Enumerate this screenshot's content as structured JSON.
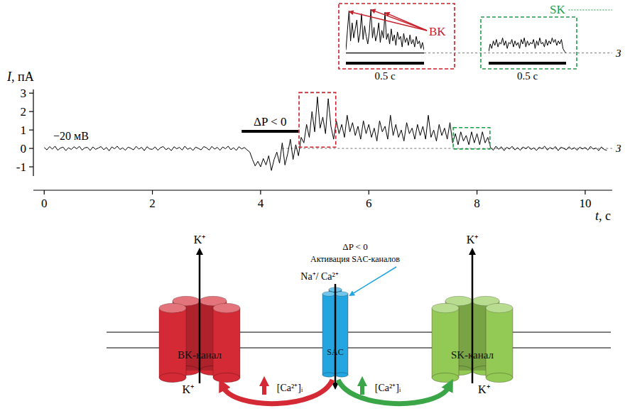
{
  "chart_data": [
    {
      "type": "line",
      "xlabel": "t, с",
      "ylabel": "I, пА",
      "xlim": [
        -0.2,
        10.5
      ],
      "ylim": [
        -1.5,
        3.2
      ],
      "xticks": [
        0,
        2,
        4,
        6,
        8,
        10
      ],
      "yticks": [
        -1,
        0,
        1,
        2,
        3
      ],
      "grid": false,
      "holding_potential": "−20 мВ",
      "pressure_pulse": {
        "start": 3.65,
        "end": 4.7,
        "label": "ΔP < 0"
      },
      "closed_level": {
        "value": 0,
        "label": "З",
        "from": 4.4
      },
      "zoom_regions": [
        {
          "start": 4.75,
          "end": 5.35,
          "color": "#c8202a"
        },
        {
          "start": 7.6,
          "end": 8.2,
          "color": "#1f9e4a"
        }
      ],
      "x": [
        0,
        0.05,
        0.1,
        0.15,
        0.2,
        0.25,
        0.3,
        0.35,
        0.4,
        0.45,
        0.5,
        0.55,
        0.6,
        0.65,
        0.7,
        0.75,
        0.8,
        0.85,
        0.9,
        0.95,
        1,
        1.05,
        1.1,
        1.15,
        1.2,
        1.25,
        1.3,
        1.35,
        1.4,
        1.45,
        1.5,
        1.55,
        1.6,
        1.65,
        1.7,
        1.75,
        1.8,
        1.85,
        1.9,
        1.95,
        2,
        2.05,
        2.1,
        2.15,
        2.2,
        2.25,
        2.3,
        2.35,
        2.4,
        2.45,
        2.5,
        2.55,
        2.6,
        2.65,
        2.7,
        2.75,
        2.8,
        2.85,
        2.9,
        2.95,
        3,
        3.05,
        3.1,
        3.15,
        3.2,
        3.25,
        3.3,
        3.35,
        3.4,
        3.45,
        3.5,
        3.55,
        3.6,
        3.65,
        3.7,
        3.75,
        3.8,
        3.85,
        3.9,
        3.95,
        4,
        4.05,
        4.1,
        4.15,
        4.2,
        4.25,
        4.3,
        4.35,
        4.4,
        4.45,
        4.5,
        4.55,
        4.6,
        4.65,
        4.7,
        4.75,
        4.8,
        4.85,
        4.9,
        4.95,
        5,
        5.05,
        5.1,
        5.15,
        5.2,
        5.25,
        5.3,
        5.35,
        5.4,
        5.45,
        5.5,
        5.55,
        5.6,
        5.65,
        5.7,
        5.75,
        5.8,
        5.85,
        5.9,
        5.95,
        6,
        6.05,
        6.1,
        6.15,
        6.2,
        6.25,
        6.3,
        6.35,
        6.4,
        6.45,
        6.5,
        6.55,
        6.6,
        6.65,
        6.7,
        6.75,
        6.8,
        6.85,
        6.9,
        6.95,
        7,
        7.05,
        7.1,
        7.15,
        7.2,
        7.25,
        7.3,
        7.35,
        7.4,
        7.45,
        7.5,
        7.55,
        7.6,
        7.65,
        7.7,
        7.75,
        7.8,
        7.85,
        7.9,
        7.95,
        8,
        8.05,
        8.1,
        8.15,
        8.2,
        8.25,
        8.3,
        8.35,
        8.4,
        8.45,
        8.5,
        8.55,
        8.6,
        8.65,
        8.7,
        8.75,
        8.8,
        8.85,
        8.9,
        8.95,
        9,
        9.05,
        9.1,
        9.15,
        9.2,
        9.25,
        9.3,
        9.35,
        9.4,
        9.45,
        9.5,
        9.55,
        9.6,
        9.65,
        9.7,
        9.75,
        9.8,
        9.85,
        9.9,
        9.95,
        10,
        10.05,
        10.1,
        10.15,
        10.2,
        10.25,
        10.3,
        10.35,
        10.4
      ],
      "series": [
        {
          "color": "#000000",
          "values": [
            0.05,
            -0.08,
            0.1,
            -0.04,
            0.12,
            -0.1,
            0.02,
            0.07,
            -0.12,
            0.04,
            -0.06,
            0.09,
            -0.02,
            0.11,
            -0.09,
            0.03,
            0.06,
            -0.11,
            0.08,
            -0.05,
            0.02,
            0.1,
            -0.07,
            0.05,
            -0.13,
            0.08,
            -0.02,
            0.12,
            -0.06,
            0.03,
            -0.1,
            0.07,
            0.01,
            -0.08,
            0.11,
            -0.04,
            0.06,
            -0.12,
            0.09,
            -0.03,
            -0.05,
            0.08,
            -0.1,
            0.04,
            0.1,
            -0.07,
            0.02,
            -0.12,
            0.09,
            -0.02,
            0.06,
            -0.09,
            0.12,
            -0.05,
            0.03,
            -0.11,
            0.07,
            0.0,
            -0.08,
            0.1,
            0.03,
            -0.09,
            0.11,
            -0.04,
            0.06,
            -0.1,
            0.08,
            -0.02,
            0.12,
            -0.07,
            0.04,
            -0.11,
            0.09,
            -0.03,
            0.05,
            -0.08,
            -0.2,
            -0.6,
            -0.95,
            -0.7,
            -1.0,
            -0.55,
            -0.9,
            -0.4,
            -1.2,
            -0.6,
            -0.2,
            -0.8,
            0.3,
            -0.9,
            -0.3,
            0.5,
            -0.6,
            0.2,
            -0.4,
            0.6,
            0.3,
            1.3,
            0.6,
            2.0,
            0.9,
            2.8,
            1.1,
            1.7,
            0.8,
            2.7,
            1.2,
            0.5,
            1.5,
            0.8,
            1.3,
            0.6,
            1.8,
            0.9,
            1.4,
            0.7,
            1.2,
            0.5,
            1.5,
            0.8,
            1.3,
            0.6,
            1.1,
            0.4,
            1.5,
            0.9,
            1.2,
            0.5,
            1.8,
            0.7,
            1.3,
            0.6,
            1.0,
            0.4,
            1.4,
            0.8,
            1.1,
            0.5,
            1.3,
            0.7,
            1.2,
            0.5,
            1.8,
            0.6,
            1.0,
            0.4,
            1.3,
            0.7,
            1.1,
            0.5,
            1.4,
            0.3,
            0.8,
            0.2,
            0.9,
            0.4,
            0.7,
            0.2,
            0.9,
            0.3,
            0.8,
            0.2,
            0.9,
            0.3,
            0.6,
            0.05,
            -0.1,
            0.12,
            -0.05,
            0.09,
            -0.12,
            0.06,
            -0.03,
            0.11,
            -0.08,
            0.04,
            -0.1,
            0.08,
            -0.02,
            0.1,
            -0.06,
            0.03,
            -0.11,
            0.07,
            -0.02,
            0.12,
            -0.09,
            0.05,
            -0.04,
            0.1,
            -0.12,
            0.06,
            0.01,
            -0.08,
            0.09,
            -0.05,
            0.04,
            -0.1,
            0.07,
            -0.03,
            0.05,
            -0.09,
            0.11,
            -0.04,
            0.02,
            -0.12,
            0.08,
            -0.06,
            -0.1
          ]
        }
      ]
    },
    {
      "type": "line",
      "xlim": [
        0,
        0.5
      ],
      "ylim": [
        -0.3,
        3.0
      ],
      "tick_labels": false,
      "scale_bar": {
        "value": 0.5,
        "label": "0.5 с"
      },
      "closed_level": {
        "value": 0,
        "label": "З"
      },
      "annotation": {
        "text": "BK",
        "color": "#c8202a",
        "peaks": [
          [
            0.02,
            2.8
          ],
          [
            0.16,
            2.9
          ],
          [
            0.25,
            2.7
          ]
        ]
      },
      "x": [
        0,
        0.01,
        0.02,
        0.03,
        0.04,
        0.05,
        0.06,
        0.07,
        0.08,
        0.09,
        0.1,
        0.11,
        0.12,
        0.13,
        0.14,
        0.15,
        0.16,
        0.17,
        0.18,
        0.19,
        0.2,
        0.21,
        0.22,
        0.23,
        0.24,
        0.25,
        0.26,
        0.27,
        0.28,
        0.29,
        0.3,
        0.31,
        0.32,
        0.33,
        0.34,
        0.35,
        0.36,
        0.37,
        0.38,
        0.39,
        0.4,
        0.41,
        0.42,
        0.43,
        0.44,
        0.45,
        0.46,
        0.47,
        0.48,
        0.49,
        0.5
      ],
      "series": [
        {
          "color": "#000000",
          "values": [
            0.2,
            1.5,
            2.8,
            0.8,
            2.0,
            1.0,
            1.6,
            2.2,
            0.7,
            1.3,
            2.6,
            0.9,
            1.8,
            1.1,
            0.6,
            1.4,
            2.9,
            1.0,
            1.7,
            0.8,
            1.2,
            2.0,
            0.7,
            1.5,
            1.0,
            2.7,
            0.9,
            1.3,
            0.6,
            1.6,
            0.8,
            1.2,
            0.5,
            1.4,
            0.9,
            1.1,
            0.4,
            1.3,
            0.7,
            1.0,
            0.5,
            1.2,
            0.6,
            0.9,
            0.4,
            1.1,
            0.6,
            0.8,
            0.3,
            0.7,
            0.2
          ]
        }
      ]
    },
    {
      "type": "line",
      "xlim": [
        0,
        0.5
      ],
      "ylim": [
        -0.3,
        3.0
      ],
      "tick_labels": false,
      "scale_bar": {
        "value": 0.5,
        "label": "0.5 с"
      },
      "annotation": {
        "text": "SK",
        "color": "#1f9e4a"
      },
      "x": [
        0,
        0.01,
        0.02,
        0.03,
        0.04,
        0.05,
        0.06,
        0.07,
        0.08,
        0.09,
        0.1,
        0.11,
        0.12,
        0.13,
        0.14,
        0.15,
        0.16,
        0.17,
        0.18,
        0.19,
        0.2,
        0.21,
        0.22,
        0.23,
        0.24,
        0.25,
        0.26,
        0.27,
        0.28,
        0.29,
        0.3,
        0.31,
        0.32,
        0.33,
        0.34,
        0.35,
        0.36,
        0.37,
        0.38,
        0.39,
        0.4,
        0.41,
        0.42,
        0.43,
        0.44,
        0.45,
        0.46,
        0.47,
        0.48,
        0.49,
        0.5
      ],
      "series": [
        {
          "color": "#000000",
          "values": [
            0.1,
            0.6,
            0.3,
            0.8,
            0.5,
            0.9,
            0.4,
            0.7,
            0.6,
            1.0,
            0.5,
            0.8,
            0.3,
            0.7,
            0.6,
            0.9,
            0.4,
            0.8,
            0.5,
            0.7,
            0.3,
            0.9,
            0.6,
            1.0,
            0.4,
            0.8,
            0.5,
            0.7,
            0.6,
            0.9,
            0.3,
            0.8,
            0.5,
            1.0,
            0.6,
            0.7,
            0.4,
            0.9,
            0.5,
            0.8,
            0.6,
            1.0,
            0.7,
            0.9,
            0.5,
            0.8,
            0.6,
            0.9,
            0.3,
            0.1,
            0.0
          ]
        }
      ]
    }
  ],
  "diagram": {
    "stimulus": "ΔP < 0",
    "stimulus_note": "Активация SAC-каналов",
    "channels": [
      {
        "label": "BK-канал",
        "color": "#d42a35",
        "ion_top": "K⁺",
        "ion_bottom": "K⁺"
      },
      {
        "label": "SAC",
        "color": "#23a6df",
        "ions": "Na⁺/ Ca²⁺"
      },
      {
        "label": "SK-канал",
        "color": "#93c955",
        "ion_top": "K⁺",
        "ion_bottom": "K⁺"
      }
    ],
    "calcium": [
      {
        "label": "[Ca²⁺]ᵢ",
        "color": "#d42a35"
      },
      {
        "label": "[Ca²⁺]ᵢ",
        "color": "#3aa648"
      }
    ]
  }
}
